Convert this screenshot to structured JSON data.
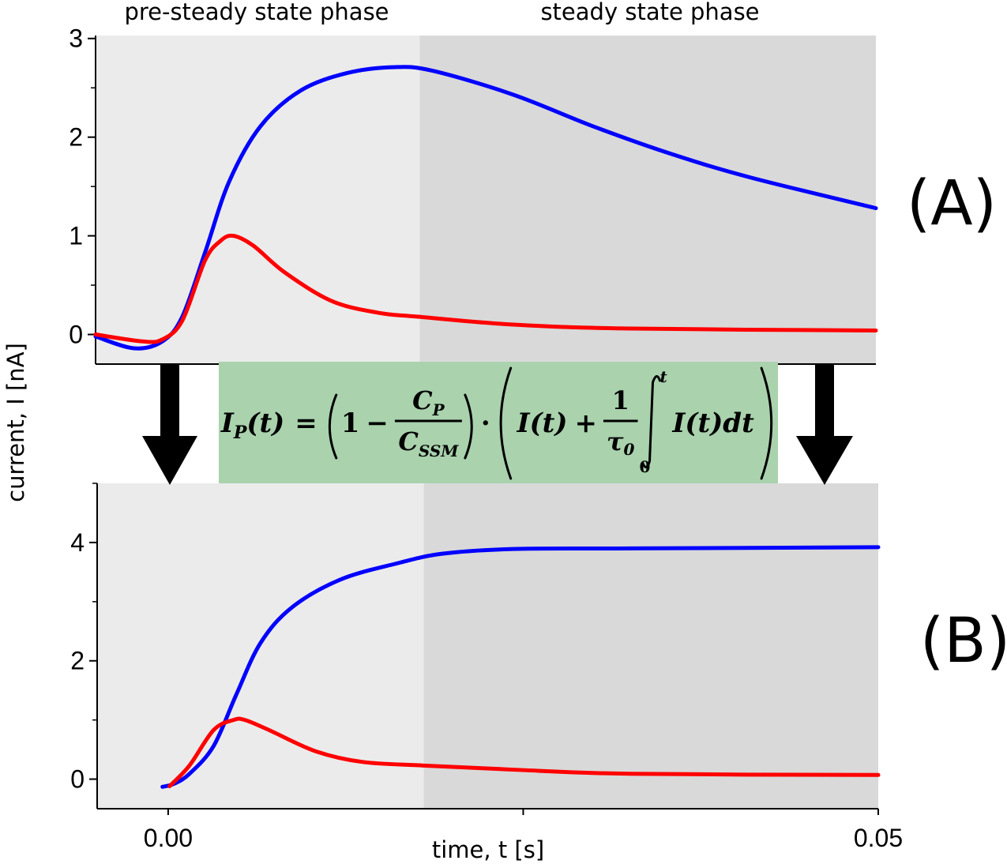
{
  "phase_labels": {
    "pre_steady": "pre-steady state phase",
    "steady": "steady state phase"
  },
  "panel_labels": {
    "a": "(A)",
    "b": "(B)"
  },
  "formula": {
    "lhs": "I",
    "lhs_sub": "P",
    "lhs_arg": "(t)",
    "eq": "=",
    "one": "1",
    "minus": "−",
    "num": "C",
    "num_sub": "P",
    "den": "C",
    "den_sub": "SSM",
    "dot": "·",
    "it": "I(t)",
    "plus": "+",
    "frac_num": "1",
    "tau": "τ",
    "tau_sub": "0",
    "int_upper": "t",
    "int_lower": "0",
    "integrand": "I(t)dt",
    "box_color": "#a9d2ad"
  },
  "chart_data": [
    {
      "type": "line",
      "panel": "(A)",
      "ylabel": "current, I [nA]",
      "xlim": [
        -0.0051,
        0.0498
      ],
      "ylim": [
        -0.3,
        3.03
      ],
      "yticks": [
        "0",
        "1",
        "2",
        "3"
      ],
      "shading": [
        {
          "from": -0.0051,
          "to": 0.0177,
          "color": "#ebebeb"
        },
        {
          "from": 0.0177,
          "to": 0.0498,
          "color": "#d9d9d9"
        }
      ],
      "series": [
        {
          "color": "#0000ff",
          "x": [
            -0.0051,
            -0.0024,
            -0.0004,
            0.001,
            0.0026,
            0.0043,
            0.0065,
            0.0093,
            0.0126,
            0.016,
            0.0187,
            0.0243,
            0.0299,
            0.0354,
            0.041,
            0.0498
          ],
          "y": [
            -0.02,
            -0.14,
            -0.07,
            0.18,
            0.83,
            1.55,
            2.11,
            2.47,
            2.65,
            2.71,
            2.67,
            2.43,
            2.11,
            1.83,
            1.59,
            1.28
          ]
        },
        {
          "color": "#ff0000",
          "x": [
            -0.0051,
            -0.0018,
            -0.0004,
            0.001,
            0.0026,
            0.0037,
            0.0046,
            0.006,
            0.0082,
            0.0115,
            0.0148,
            0.0176,
            0.0243,
            0.0326,
            0.0498
          ],
          "y": [
            0,
            -0.07,
            -0.05,
            0.14,
            0.75,
            0.95,
            1.0,
            0.9,
            0.63,
            0.34,
            0.22,
            0.18,
            0.1,
            0.06,
            0.04
          ]
        }
      ]
    },
    {
      "type": "line",
      "panel": "(B)",
      "xlabel": "time, t [s]",
      "xlim": [
        -0.005,
        0.05
      ],
      "ylim": [
        -0.5,
        5.0
      ],
      "xticks": [
        "0.00",
        "0.05"
      ],
      "yticks": [
        "0",
        "2",
        "4"
      ],
      "shading": [
        {
          "from": -0.005,
          "to": 0.018,
          "color": "#ebebeb"
        },
        {
          "from": 0.018,
          "to": 0.05,
          "color": "#d9d9d9"
        }
      ],
      "series": [
        {
          "color": "#0000ff",
          "x": [
            -0.0004,
            0.0004,
            0.0015,
            0.0032,
            0.0048,
            0.0065,
            0.0087,
            0.0121,
            0.016,
            0.0193,
            0.0243,
            0.0326,
            0.05
          ],
          "y": [
            -0.13,
            -0.08,
            0.09,
            0.56,
            1.43,
            2.3,
            2.9,
            3.37,
            3.64,
            3.81,
            3.89,
            3.9,
            3.92
          ]
        },
        {
          "color": "#ff0000",
          "x": [
            0.0001,
            0.0015,
            0.0032,
            0.0046,
            0.0054,
            0.0071,
            0.0104,
            0.0137,
            0.018,
            0.0243,
            0.0326,
            0.05
          ],
          "y": [
            -0.12,
            0.23,
            0.83,
            1.0,
            1.0,
            0.83,
            0.47,
            0.29,
            0.23,
            0.16,
            0.09,
            0.07
          ]
        }
      ]
    }
  ]
}
